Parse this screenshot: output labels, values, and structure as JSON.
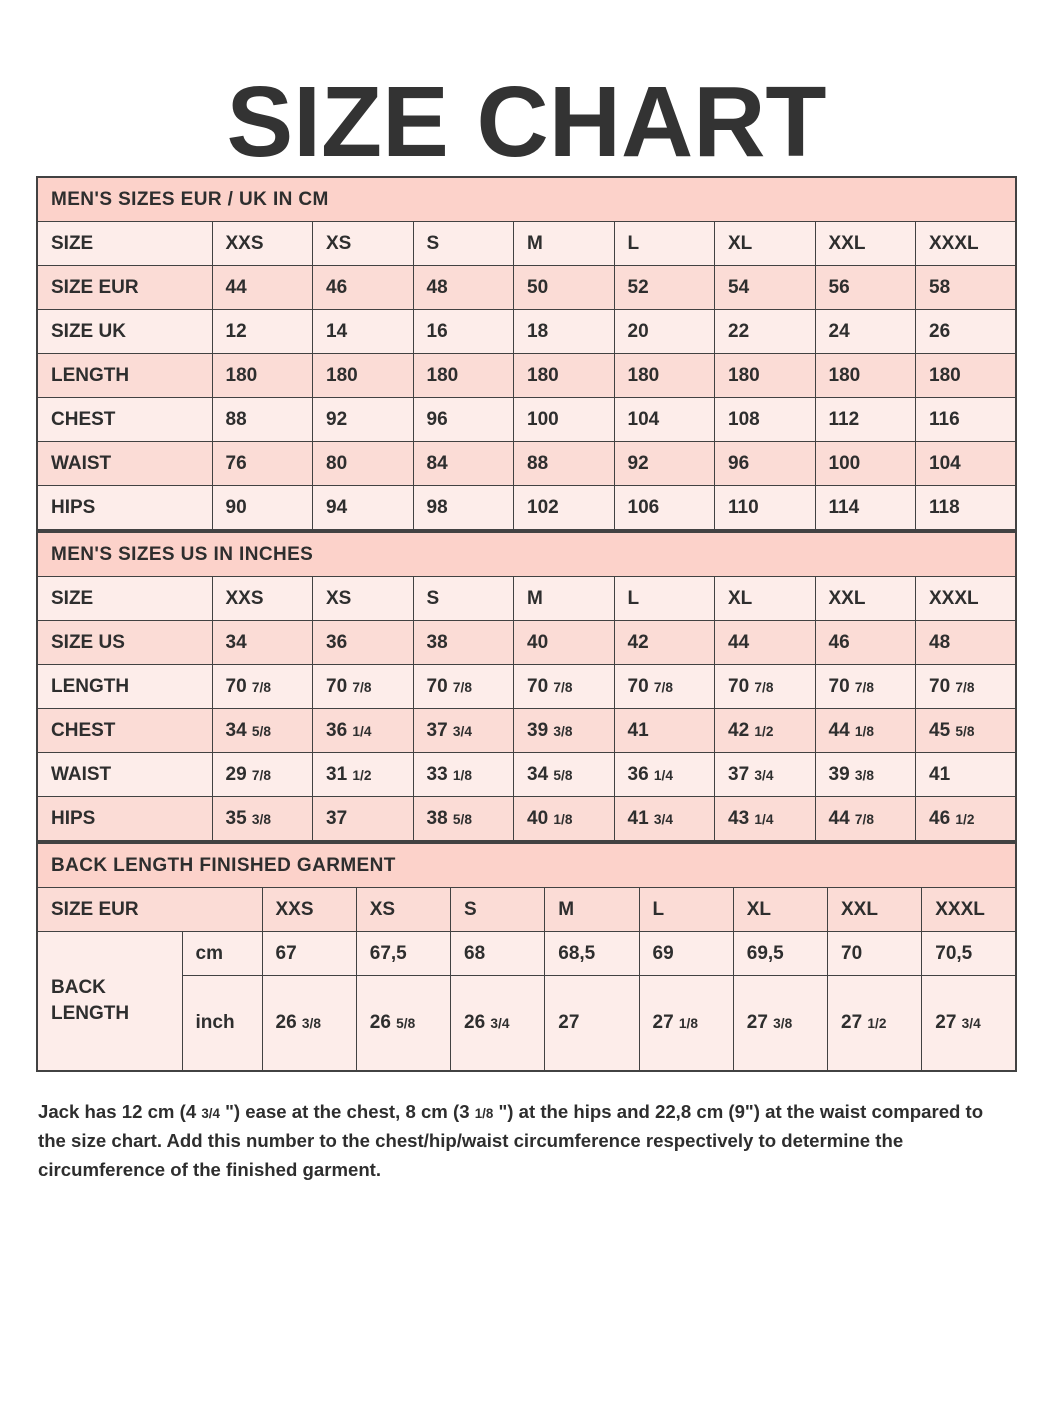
{
  "title": "SIZE CHART",
  "colors": {
    "band_background": "#fcd2ca",
    "row_light": "#fdedea",
    "row_medium": "#fbdcd6",
    "border": "#424242",
    "text": "#2e2e2e"
  },
  "tables": [
    {
      "title": "MEN'S SIZES EUR / UK IN CM",
      "rows": [
        {
          "label": "SIZE",
          "values": [
            "XXS",
            "XS",
            "S",
            "M",
            "L",
            "XL",
            "XXL",
            "XXXL"
          ]
        },
        {
          "label": "SIZE EUR",
          "values": [
            "44",
            "46",
            "48",
            "50",
            "52",
            "54",
            "56",
            "58"
          ]
        },
        {
          "label": "SIZE UK",
          "values": [
            "12",
            "14",
            "16",
            "18",
            "20",
            "22",
            "24",
            "26"
          ]
        },
        {
          "label": "LENGTH",
          "values": [
            "180",
            "180",
            "180",
            "180",
            "180",
            "180",
            "180",
            "180"
          ]
        },
        {
          "label": "CHEST",
          "values": [
            "88",
            "92",
            "96",
            "100",
            "104",
            "108",
            "112",
            "116"
          ]
        },
        {
          "label": "WAIST",
          "values": [
            "76",
            "80",
            "84",
            "88",
            "92",
            "96",
            "100",
            "104"
          ]
        },
        {
          "label": "HIPS",
          "values": [
            "90",
            "94",
            "98",
            "102",
            "106",
            "110",
            "114",
            "118"
          ]
        }
      ]
    },
    {
      "title": "MEN'S SIZES US IN INCHES",
      "rows": [
        {
          "label": "SIZE",
          "values": [
            "XXS",
            "XS",
            "S",
            "M",
            "L",
            "XL",
            "XXL",
            "XXXL"
          ]
        },
        {
          "label": "SIZE US",
          "values": [
            "34",
            "36",
            "38",
            "40",
            "42",
            "44",
            "46",
            "48"
          ]
        },
        {
          "label": "LENGTH",
          "values": [
            "70 7/8",
            "70 7/8",
            "70 7/8",
            "70 7/8",
            "70 7/8",
            "70 7/8",
            "70 7/8",
            "70 7/8"
          ]
        },
        {
          "label": "CHEST",
          "values": [
            "34 5/8",
            "36 1/4",
            "37 3/4",
            "39 3/8",
            "41",
            "42 1/2",
            "44 1/8",
            "45 5/8"
          ]
        },
        {
          "label": "WAIST",
          "values": [
            "29 7/8",
            "31 1/2",
            "33 1/8",
            "34 5/8",
            "36 1/4",
            "37 3/4",
            "39 3/8",
            "41"
          ]
        },
        {
          "label": "HIPS",
          "values": [
            "35 3/8",
            "37",
            "38 5/8",
            "40 1/8",
            "41 3/4",
            "43 1/4",
            "44 7/8",
            "46 1/2"
          ]
        }
      ]
    }
  ],
  "back_length_table": {
    "title": "BACK LENGTH FINISHED GARMENT",
    "size_row_label": "SIZE EUR",
    "sizes": [
      "XXS",
      "XS",
      "S",
      "M",
      "L",
      "XL",
      "XXL",
      "XXXL"
    ],
    "row_label": "BACK LENGTH",
    "unit_rows": [
      {
        "unit": "cm",
        "values": [
          "67",
          "67,5",
          "68",
          "68,5",
          "69",
          "69,5",
          "70",
          "70,5"
        ]
      },
      {
        "unit": "inch",
        "values": [
          "26 3/8",
          "26 5/8",
          "26 3/4",
          "27",
          "27 1/8",
          "27 3/8",
          "27 1/2",
          "27 3/4"
        ]
      }
    ]
  },
  "footer": "Jack has 12 cm (4 3/4 \") ease at the chest, 8 cm (3 1/8 \") at the hips and 22,8 cm (9\") at the waist compared to the size chart. Add this number to the chest/hip/waist circumference respectively to determine the circumference of the finished garment."
}
